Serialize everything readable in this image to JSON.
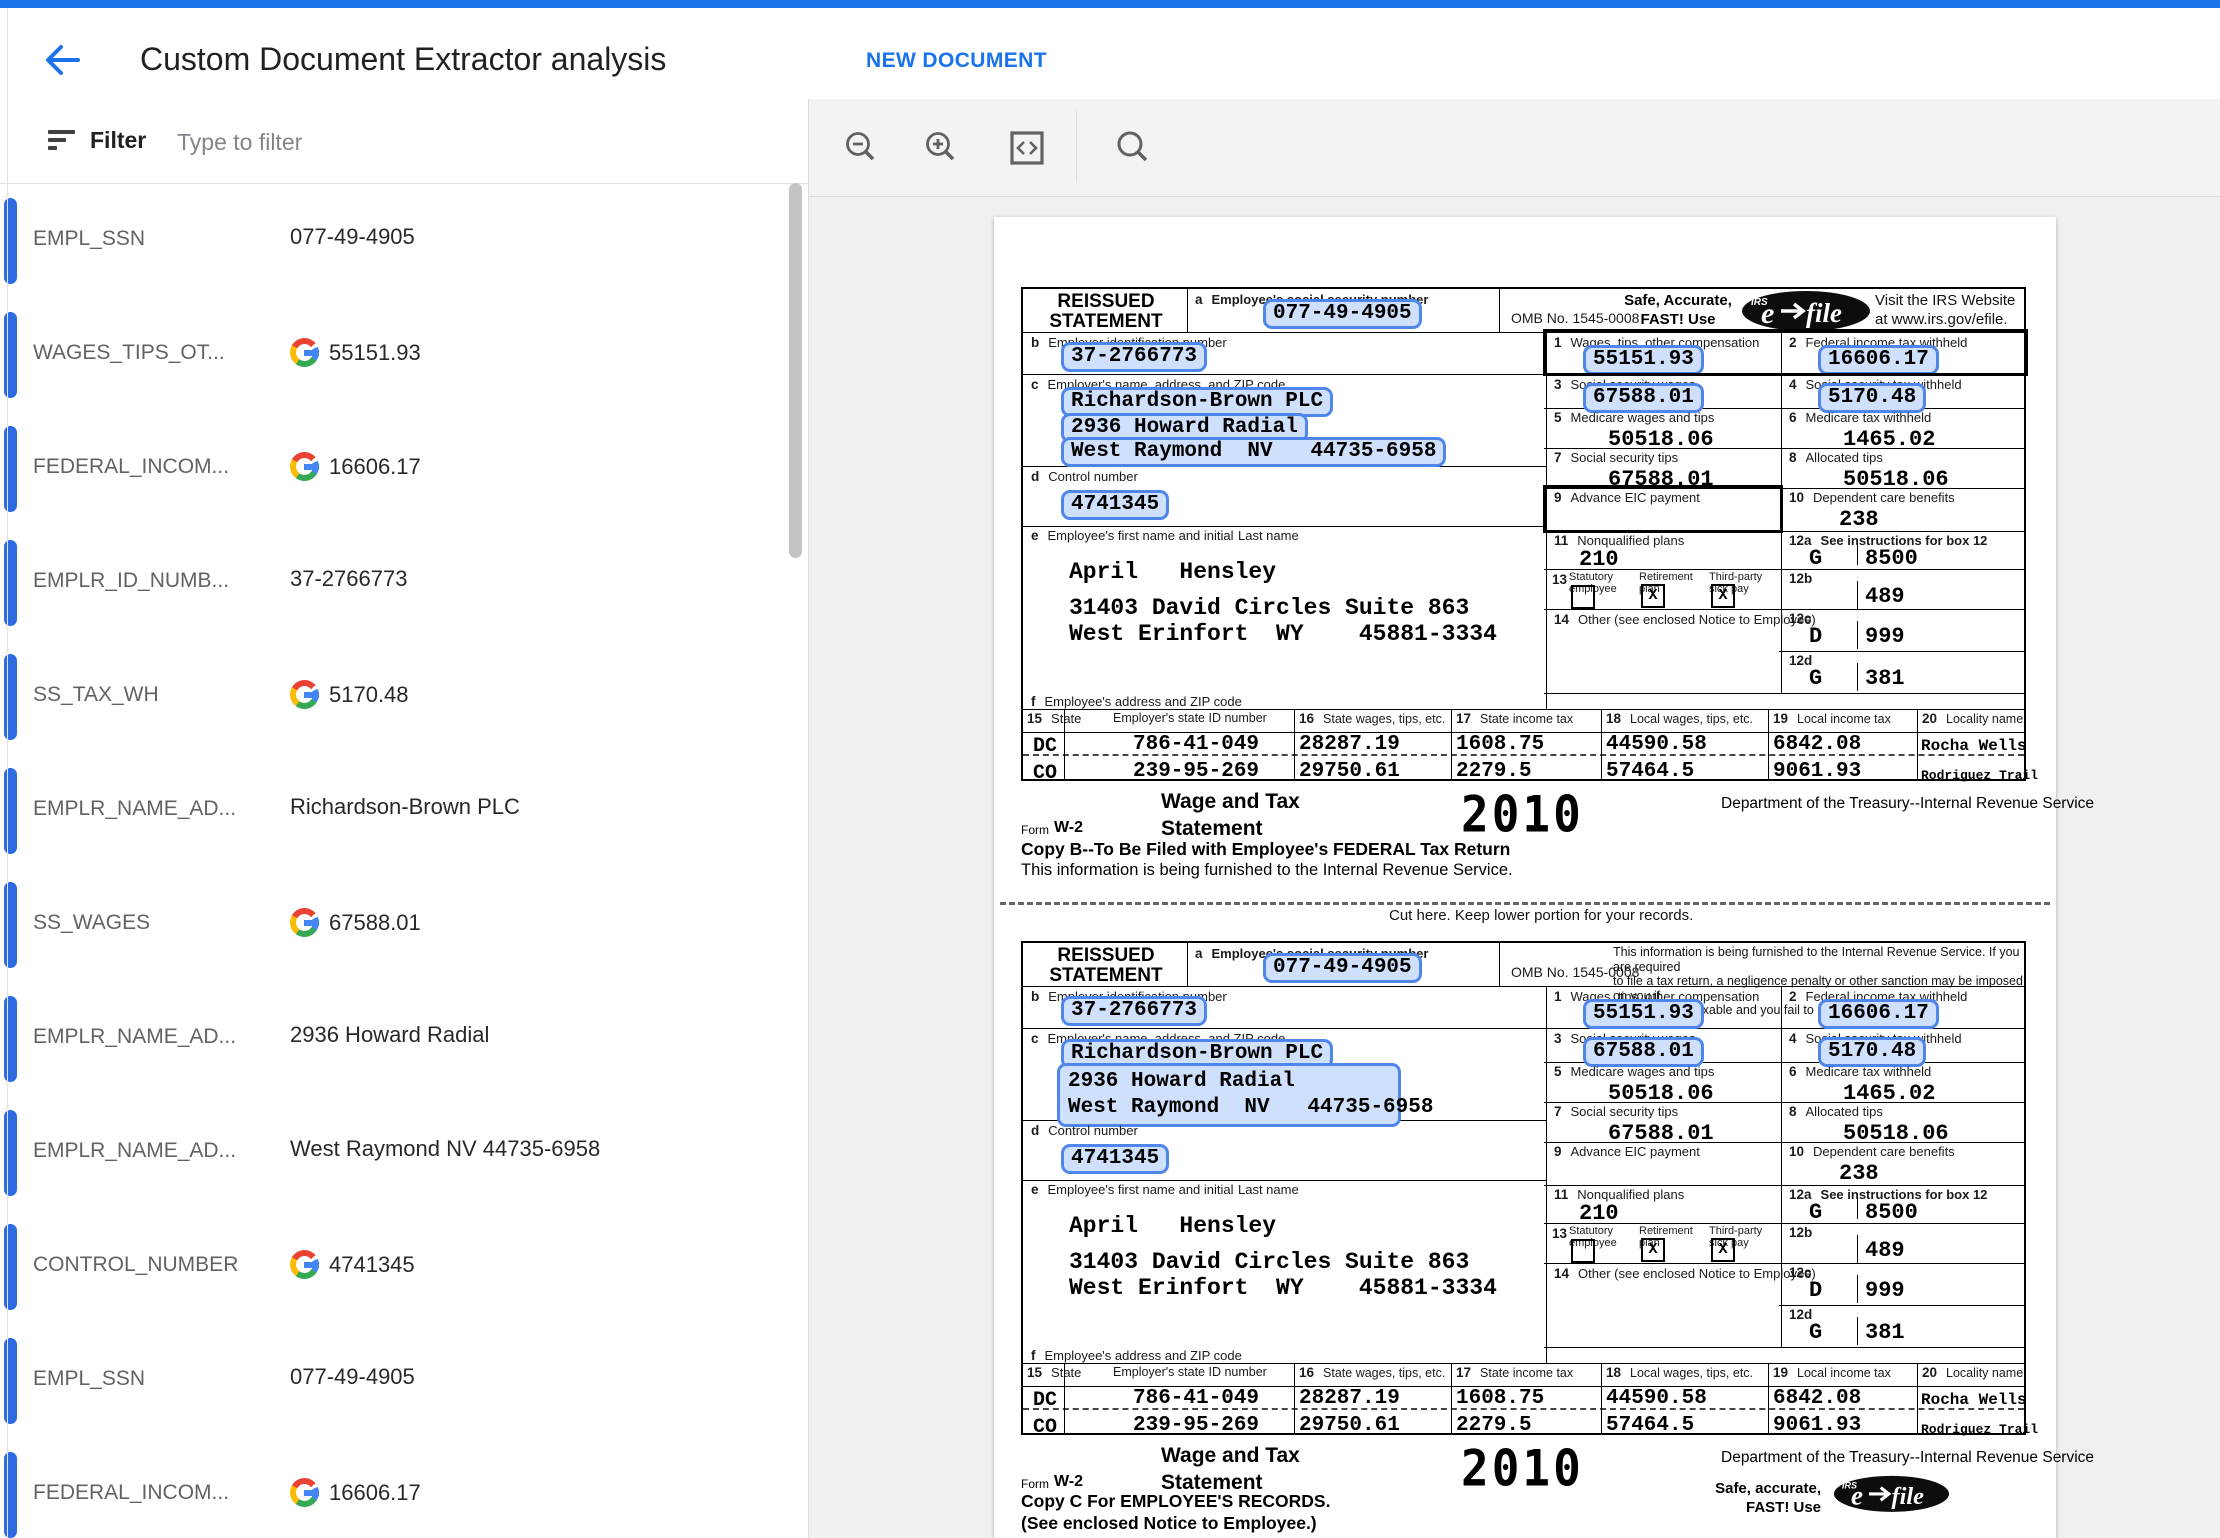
{
  "header": {
    "title": "Custom Document Extractor analysis",
    "new_document": "NEW DOCUMENT"
  },
  "filter": {
    "label": "Filter",
    "placeholder": "Type to filter"
  },
  "toolbar_icons": [
    "zoom-out",
    "zoom-in",
    "code-view",
    "search"
  ],
  "fields": [
    {
      "label": "EMPL_SSN",
      "value": "077-49-4905",
      "g": false
    },
    {
      "label": "WAGES_TIPS_OT...",
      "value": "55151.93",
      "g": true
    },
    {
      "label": "FEDERAL_INCOM...",
      "value": "16606.17",
      "g": true
    },
    {
      "label": "EMPLR_ID_NUMB...",
      "value": "37-2766773",
      "g": false
    },
    {
      "label": "SS_TAX_WH",
      "value": "5170.48",
      "g": true
    },
    {
      "label": "EMPLR_NAME_AD...",
      "value": "Richardson-Brown PLC",
      "g": false
    },
    {
      "label": "SS_WAGES",
      "value": "67588.01",
      "g": true
    },
    {
      "label": "EMPLR_NAME_AD...",
      "value": "2936 Howard Radial",
      "g": false
    },
    {
      "label": "EMPLR_NAME_AD...",
      "value": "West Raymond NV 44735-6958",
      "g": false
    },
    {
      "label": "CONTROL_NUMBER",
      "value": "4741345",
      "g": true
    },
    {
      "label": "EMPL_SSN",
      "value": "077-49-4905",
      "g": false
    },
    {
      "label": "FEDERAL_INCOM...",
      "value": "16606.17",
      "g": true
    }
  ],
  "w2": {
    "reissued": [
      "REISSUED",
      "STATEMENT"
    ],
    "omb": "OMB No. 1545-0008",
    "safe_accurate_top": [
      "Safe, Accurate,",
      "FAST!  Use"
    ],
    "visit": [
      "Visit the IRS Website",
      "at www.irs.gov/efile."
    ],
    "efile_text": {
      "irs": "IRS",
      "e": "e",
      "file": "file"
    },
    "notice_form2": [
      "This information is being furnished to the Internal Revenue Service.  If you are required",
      "to file a tax return, a negligence penalty or other sanction may be imposed on you if",
      "this income is taxable and you fail to report it."
    ],
    "a": {
      "letter": "a",
      "label": "Employee's social security number",
      "value": "077-49-4905"
    },
    "b": {
      "letter": "b",
      "label": "Employer identification number",
      "value": "37-2766773"
    },
    "c": {
      "letter": "c",
      "label": "Employer's name, address, and ZIP code",
      "lines": [
        "Richardson-Brown PLC",
        "2936 Howard Radial",
        "West Raymond  NV   44735-6958"
      ]
    },
    "d": {
      "letter": "d",
      "label": "Control number",
      "value": "4741345"
    },
    "e": {
      "letter": "e",
      "label": "Employee's first name and initial",
      "label2": "Last name",
      "lines": [
        "April   Hensley",
        "31403 David Circles Suite 863",
        "West Erinfort  WY    45881-3334"
      ]
    },
    "f": {
      "letter": "f",
      "label": "Employee's address and ZIP code"
    },
    "boxes": {
      "1": {
        "label": "Wages, tips, other compensation",
        "value": "55151.93",
        "hl": true
      },
      "2": {
        "label": "Federal income tax withheld",
        "value": "16606.17",
        "hl": true
      },
      "3": {
        "label": "Social security wages",
        "value": "67588.01",
        "hl": true
      },
      "4": {
        "label": "Social security tax withheld",
        "value": "5170.48",
        "hl": true
      },
      "5": {
        "label": "Medicare wages and tips",
        "value": "50518.06",
        "hl": false
      },
      "6": {
        "label": "Medicare tax withheld",
        "value": "1465.02",
        "hl": false
      },
      "7": {
        "label": "Social security tips",
        "value": "67588.01",
        "hl": false
      },
      "8": {
        "label": "Allocated tips",
        "value": "50518.06",
        "hl": false
      },
      "9": {
        "label": "Advance EIC payment",
        "value": "",
        "hl": false
      },
      "10": {
        "label": "Dependent care benefits",
        "value": "238",
        "hl": false
      },
      "11": {
        "label": "Nonqualified plans",
        "value": "210",
        "hl": false
      }
    },
    "box12": [
      {
        "n": "12a",
        "label": "See instructions for box 12",
        "code": "G",
        "value": "8500"
      },
      {
        "n": "12b",
        "label": "",
        "code": "",
        "value": "489"
      },
      {
        "n": "12c",
        "label": "",
        "code": "D",
        "value": "999"
      },
      {
        "n": "12d",
        "label": "",
        "code": "G",
        "value": "381"
      }
    ],
    "box13": {
      "n": "13",
      "items": [
        {
          "label": "Statutory",
          "label2": "employee",
          "checked": false
        },
        {
          "label": "Retirement",
          "label2": "plan",
          "checked": true
        },
        {
          "label": "Third-party",
          "label2": "sick pay",
          "checked": true
        }
      ]
    },
    "box14": {
      "n": "14",
      "label": "Other (see enclosed Notice to Employee)"
    },
    "state_header": {
      "n15": "15",
      "state": "State",
      "id": "Employer's state ID number",
      "n16": "16",
      "l16": "State wages, tips, etc.",
      "n17": "17",
      "l17": "State income tax",
      "n18": "18",
      "l18": "Local wages, tips, etc.",
      "n19": "19",
      "l19": "Local income tax",
      "n20": "20",
      "l20": "Locality name"
    },
    "state_rows": [
      {
        "state": "DC",
        "id": "786-41-049",
        "wages": "28287.19",
        "tax": "1608.75",
        "local_wages": "44590.58",
        "local_tax": "6842.08",
        "locality": "Rocha Wells"
      },
      {
        "state": "CO",
        "id": "239-95-269",
        "wages": "29750.61",
        "tax": "2279.5",
        "local_wages": "57464.5",
        "local_tax": "9061.93",
        "locality": "Rodriguez Trail"
      }
    ],
    "footer": {
      "form_word": "Form",
      "form_num": "W-2",
      "title": [
        "Wage and Tax",
        "Statement"
      ],
      "year": "2010",
      "dept": "Department of the Treasury--Internal Revenue Service",
      "copy_b": [
        "Copy B--To Be Filed with Employee's FEDERAL Tax Return",
        "This information is being furnished to the Internal Revenue Service."
      ],
      "copy_c": [
        "Copy C For EMPLOYEE'S RECORDS.",
        "(See enclosed Notice to Employee.)"
      ],
      "safe_accurate": [
        "Safe, accurate,",
        "FAST!  Use"
      ]
    },
    "cut_text": "Cut here.  Keep lower portion for your records."
  }
}
